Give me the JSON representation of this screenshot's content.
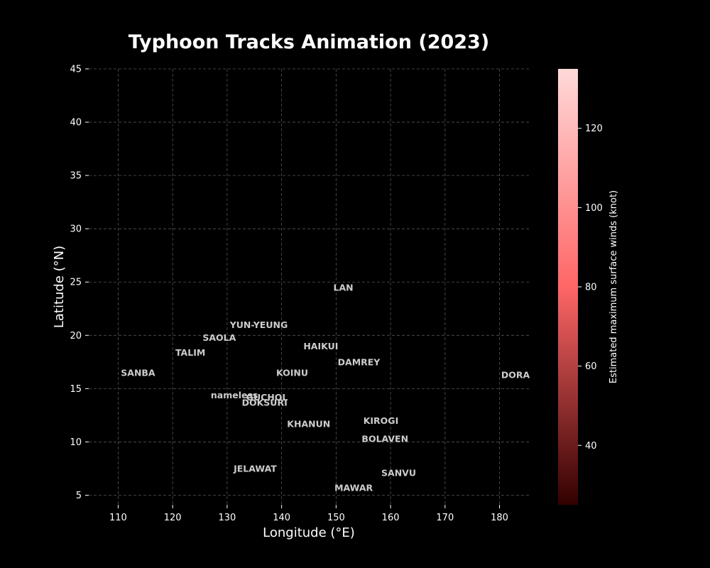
{
  "chart_data": {
    "type": "scatter",
    "title": "Typhoon Tracks Animation (2023)",
    "xlabel": "Longitude (°E)",
    "ylabel": "Latitude (°N)",
    "xlim": [
      104.6,
      185.4
    ],
    "ylim": [
      4.1,
      45
    ],
    "xticks": [
      110,
      120,
      130,
      140,
      150,
      160,
      170,
      180
    ],
    "yticks": [
      5,
      10,
      15,
      20,
      25,
      30,
      35,
      40,
      45
    ],
    "grid": true,
    "colorbar": {
      "label": "Estimated maximum surface winds (knot)",
      "range": [
        25,
        135
      ],
      "ticks": [
        40,
        60,
        80,
        100,
        120
      ],
      "colors": [
        "#330000",
        "#ff6666",
        "#ffd9d9"
      ]
    },
    "annotations": [
      {
        "label": "LAN",
        "x": 149.5,
        "y": 24.5
      },
      {
        "label": "YUN-YEUNG",
        "x": 130.5,
        "y": 21.0
      },
      {
        "label": "SAOLA",
        "x": 125.5,
        "y": 19.8
      },
      {
        "label": "TALIM",
        "x": 120.5,
        "y": 18.4
      },
      {
        "label": "HAIKUI",
        "x": 144.0,
        "y": 19.0
      },
      {
        "label": "DAMREY",
        "x": 150.3,
        "y": 17.5
      },
      {
        "label": "SANBA",
        "x": 110.5,
        "y": 16.5
      },
      {
        "label": "KOINU",
        "x": 139.0,
        "y": 16.5
      },
      {
        "label": "DORA",
        "x": 180.3,
        "y": 16.3
      },
      {
        "label": "nameless",
        "x": 127.0,
        "y": 14.4
      },
      {
        "label": "GUCHOL",
        "x": 133.5,
        "y": 14.2
      },
      {
        "label": "DOKSURI",
        "x": 132.7,
        "y": 13.7
      },
      {
        "label": "KIROGI",
        "x": 155.0,
        "y": 12.0
      },
      {
        "label": "KHANUN",
        "x": 141.0,
        "y": 11.7
      },
      {
        "label": "BOLAVEN",
        "x": 154.7,
        "y": 10.3
      },
      {
        "label": "JELAWAT",
        "x": 131.2,
        "y": 7.5
      },
      {
        "label": "SANVU",
        "x": 158.3,
        "y": 7.1
      },
      {
        "label": "MAWAR",
        "x": 149.7,
        "y": 5.7
      }
    ]
  }
}
